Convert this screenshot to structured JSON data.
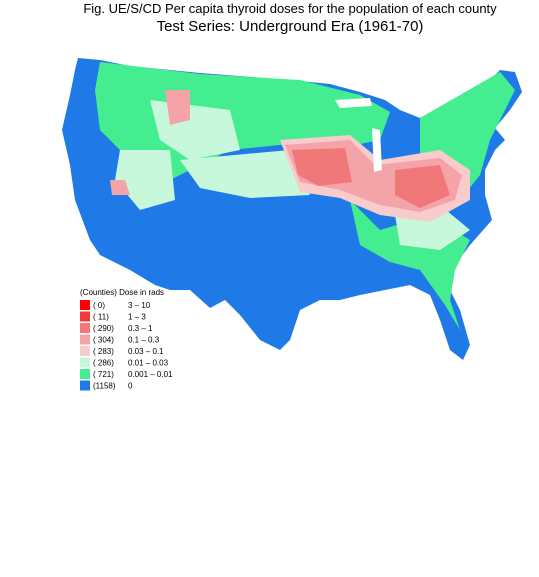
{
  "title": "Fig. UE/S/CD   Per capita thyroid doses for the population of each county",
  "subtitle": "Test Series:  Underground Era (1961-70)",
  "legend": {
    "title": "(Counties) Dose in rads",
    "items": [
      {
        "count": "(    0)",
        "range": "3      –  10",
        "color": "#ff0000"
      },
      {
        "count": "(   11)",
        "range": "1      –  3",
        "color": "#f23a3a"
      },
      {
        "count": "( 290)",
        "range": "0.3    –  1",
        "color": "#f07878"
      },
      {
        "count": "( 304)",
        "range": "0.1    –  0.3",
        "color": "#f4a4a8"
      },
      {
        "count": "( 283)",
        "range": "0.03  –  0.1",
        "color": "#f8cccc"
      },
      {
        "count": "( 286)",
        "range": "0.01  –  0.03",
        "color": "#c8f8dc"
      },
      {
        "count": "( 721)",
        "range": "0.001  –  0.01",
        "color": "#44ee90"
      },
      {
        "count": "(1158)",
        "range": "0",
        "color": "#1f7ae8"
      }
    ]
  }
}
